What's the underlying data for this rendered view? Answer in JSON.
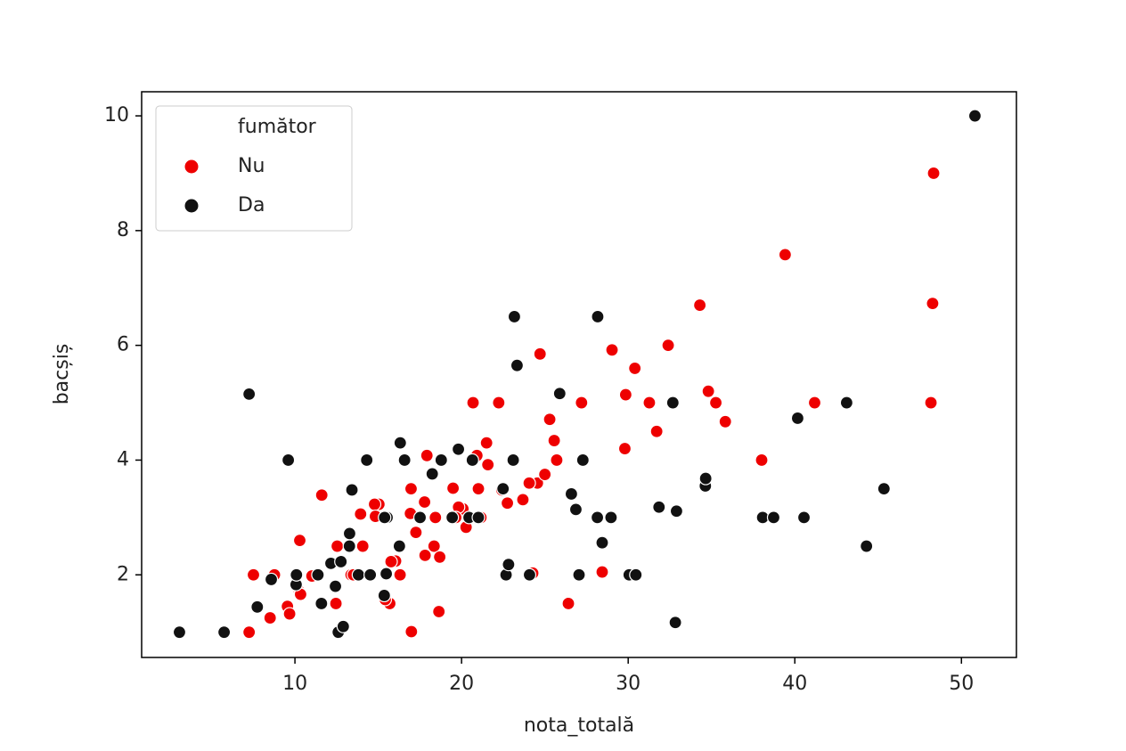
{
  "chart_data": {
    "type": "scatter",
    "xlabel": "nota_totală",
    "ylabel": "bacșiș",
    "xlim": [
      0.8,
      53.3
    ],
    "ylim": [
      0.56,
      10.42
    ],
    "xticks": [
      10,
      20,
      30,
      40,
      50
    ],
    "yticks": [
      2,
      4,
      6,
      8,
      10
    ],
    "legend_title": "fumător",
    "legend": "upper left",
    "series": [
      {
        "name": "Nu",
        "color": "#ee0000",
        "x": [
          48.33,
          39.42,
          48.27,
          34.3,
          32.4,
          29.03,
          24.71,
          30.4,
          34.81,
          29.85,
          35.26,
          31.27,
          41.19,
          48.17,
          20.69,
          22.23,
          27.2,
          35.83,
          25.29,
          31.71,
          25.56,
          21.58,
          29.8,
          38.01,
          25.71,
          21.5,
          17.92,
          18.29,
          11.61,
          24.55,
          23.68,
          22.42,
          24.27,
          26.41,
          28.44,
          20.27,
          21.16,
          16.97,
          15.04,
          14.07,
          13.37,
          12.46,
          10.27,
          10.33,
          7.25,
          7.51,
          8.77,
          10.29,
          9.55,
          8.51,
          10.34,
          16.99,
          18.64,
          19.49,
          17.26,
          20.08,
          21.01,
          14.78,
          16.31,
          16.04,
          12.54,
          18.43,
          13.94,
          14.83,
          19.82,
          22.75,
          18.35,
          15.69,
          24.06,
          16.93,
          19.65,
          15.77,
          13.51,
          25,
          23.1,
          20.92,
          15.42,
          11.02,
          17.78,
          18.69,
          9.68,
          17.81
        ],
        "values": [
          9,
          7.58,
          6.73,
          6.7,
          6,
          5.92,
          5.85,
          5.6,
          5.2,
          5.14,
          5,
          5,
          5,
          5,
          5,
          5,
          5,
          4.67,
          4.71,
          4.5,
          4.34,
          3.92,
          4.2,
          4,
          4,
          4.3,
          4.08,
          3.76,
          3.39,
          3.6,
          3.31,
          3.48,
          2.03,
          1.5,
          2.05,
          2.83,
          3,
          3.5,
          3.23,
          2.5,
          2,
          1.5,
          1.71,
          1.67,
          1,
          2,
          2,
          2.6,
          1.45,
          1.25,
          1.66,
          1.01,
          1.36,
          3.51,
          2.74,
          3.15,
          3.5,
          3.23,
          2,
          2.24,
          2.5,
          3,
          3.06,
          3.02,
          3.18,
          3.25,
          2.5,
          1.5,
          3.6,
          3.07,
          3,
          2.23,
          2,
          3.75,
          4,
          4.08,
          1.57,
          1.98,
          3.27,
          2.31,
          1.32,
          2.34
        ]
      },
      {
        "name": "Da",
        "color": "#111111",
        "x": [
          50.81,
          23.17,
          28.17,
          23.33,
          25.89,
          7.25,
          43.11,
          32.68,
          40.17,
          16.32,
          9.6,
          14.31,
          27.28,
          16.58,
          18.78,
          20.65,
          23.1,
          19.81,
          34.63,
          34.65,
          45.35,
          13.42,
          26.59,
          38.07,
          38.73,
          40.55,
          28.15,
          15.53,
          17.51,
          28.97,
          30.06,
          31.85,
          32.83,
          44.3,
          28.44,
          27.05,
          22.67,
          24.08,
          20.45,
          22.49,
          11.38,
          12.6,
          3.07,
          5.75,
          7.74,
          8.58,
          10.07,
          12.9,
          12.43,
          13.28,
          15.38,
          16.27,
          15.48,
          19.44,
          12.16,
          12.76,
          13.27,
          26.86,
          11.59,
          15.36,
          13.81,
          32.9,
          30.46,
          10.09,
          18.24,
          14.52,
          21.01,
          22.82
        ],
        "values": [
          10,
          6.5,
          6.5,
          5.65,
          5.16,
          5.15,
          5,
          5,
          4.73,
          4.3,
          4,
          4,
          4,
          4,
          4,
          4,
          4,
          4.19,
          3.55,
          3.68,
          3.5,
          3.48,
          3.41,
          3,
          3,
          3,
          3,
          3,
          3,
          3,
          2,
          3.18,
          1.17,
          2.5,
          2.56,
          2,
          2,
          2,
          3,
          3.5,
          2,
          1,
          1,
          1,
          1.44,
          1.92,
          1.83,
          1.1,
          1.8,
          2.72,
          3,
          2.5,
          2.02,
          3,
          2.2,
          2.23,
          2.5,
          3.14,
          1.5,
          1.64,
          2,
          3.11,
          2,
          2,
          3.76,
          2,
          3,
          2.18
        ]
      }
    ]
  }
}
